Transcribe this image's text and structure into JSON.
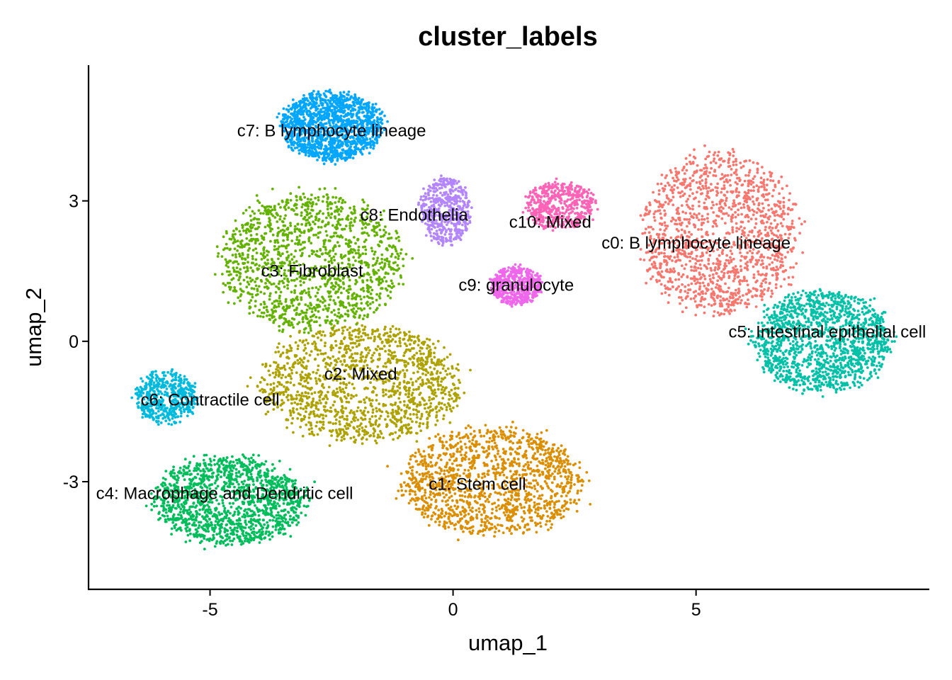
{
  "chart_data": {
    "type": "scatter",
    "title": "cluster_labels",
    "xlabel": "umap_1",
    "ylabel": "umap_2",
    "xlim": [
      -7.5,
      9.8
    ],
    "ylim": [
      -5.3,
      5.9
    ],
    "xticks": [
      {
        "value": -5,
        "label": "-5"
      },
      {
        "value": 0,
        "label": "0"
      },
      {
        "value": 5,
        "label": "5"
      }
    ],
    "yticks": [
      {
        "value": -3,
        "label": "-3"
      },
      {
        "value": 0,
        "label": "0"
      },
      {
        "value": 3,
        "label": "3"
      }
    ],
    "grid": false,
    "legend": "none",
    "clusters": [
      {
        "name": "c0: B lymphocyte lineage",
        "color": "#F8766D",
        "center": [
          5.5,
          2.3
        ],
        "spread": [
          1.55,
          1.65
        ],
        "label_pos": [
          5.0,
          2.1
        ]
      },
      {
        "name": "c1: Stem cell",
        "color": "#DB8E00",
        "center": [
          0.8,
          -3.0
        ],
        "spread": [
          1.8,
          1.1
        ],
        "label_pos": [
          0.5,
          -3.05
        ]
      },
      {
        "name": "c2: Mixed",
        "color": "#AEA200",
        "center": [
          -1.9,
          -0.9
        ],
        "spread": [
          2.0,
          1.2
        ],
        "label_pos": [
          -1.9,
          -0.7
        ]
      },
      {
        "name": "c3: Fibroblast",
        "color": "#64B200",
        "center": [
          -2.9,
          1.7
        ],
        "spread": [
          1.8,
          1.4
        ],
        "label_pos": [
          -2.9,
          1.5
        ]
      },
      {
        "name": "c4: Macrophage and Dendritic cell",
        "color": "#00BD5C",
        "center": [
          -4.6,
          -3.4
        ],
        "spread": [
          1.5,
          0.9
        ],
        "label_pos": [
          -4.7,
          -3.25
        ]
      },
      {
        "name": "c5: Intestinal epithelial cell",
        "color": "#00C1A7",
        "center": [
          7.6,
          0.0
        ],
        "spread": [
          1.35,
          1.05
        ],
        "label_pos": [
          7.7,
          0.2
        ]
      },
      {
        "name": "c6: Contractile cell",
        "color": "#00BADE",
        "center": [
          -5.9,
          -1.2
        ],
        "spread": [
          0.6,
          0.55
        ],
        "label_pos": [
          -5.0,
          -1.25
        ]
      },
      {
        "name": "c7: B lymphocyte lineage",
        "color": "#00A6FF",
        "center": [
          -2.5,
          4.6
        ],
        "spread": [
          1.0,
          0.7
        ],
        "label_pos": [
          -2.5,
          4.5
        ]
      },
      {
        "name": "c8: Endothelia",
        "color": "#B385FF",
        "center": [
          -0.15,
          2.8
        ],
        "spread": [
          0.5,
          0.7
        ],
        "label_pos": [
          -0.8,
          2.7
        ]
      },
      {
        "name": "c9: granulocyte",
        "color": "#EF67EB",
        "center": [
          1.3,
          1.2
        ],
        "spread": [
          0.5,
          0.4
        ],
        "label_pos": [
          1.3,
          1.2
        ]
      },
      {
        "name": "c10: Mixed",
        "color": "#FF63B6",
        "center": [
          2.2,
          2.9
        ],
        "spread": [
          0.7,
          0.5
        ],
        "label_pos": [
          2.0,
          2.55
        ]
      }
    ]
  }
}
